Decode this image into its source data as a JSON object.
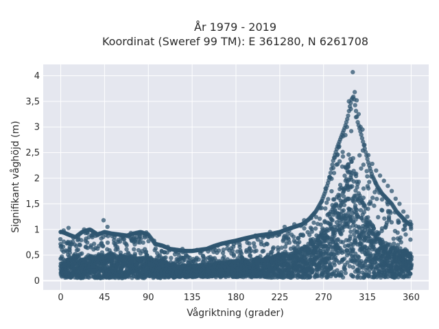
{
  "chart_data": {
    "type": "scatter",
    "title_line1": "År 1979 - 2019",
    "title_line2": "Koordinat (Sweref 99 TM): E 361280, N 6261708",
    "xlabel": "Vågriktning (grader)",
    "ylabel": "Signifikant våghöjd (m)",
    "xlim": [
      -18,
      378
    ],
    "ylim": [
      -0.18,
      4.22
    ],
    "x_ticks": [
      0,
      45,
      90,
      135,
      180,
      225,
      270,
      315,
      360
    ],
    "x_tick_labels": [
      "0",
      "45",
      "90",
      "135",
      "180",
      "225",
      "270",
      "315",
      "360"
    ],
    "y_ticks": [
      0,
      0.5,
      1,
      1.5,
      2,
      2.5,
      3,
      3.5,
      4
    ],
    "y_tick_labels": [
      "0",
      "0,5",
      "1",
      "1,5",
      "2",
      "2,5",
      "3",
      "3,5",
      "4"
    ],
    "grid": true,
    "marker_color": "#2f5670",
    "background_color": "#e5e7ef",
    "series": [
      {
        "x": [
          2,
          8,
          15,
          22,
          30,
          38,
          45,
          52,
          60,
          68,
          75,
          82,
          90,
          97,
          105,
          112,
          120,
          128,
          135,
          142,
          150,
          158,
          165,
          172,
          180,
          188,
          195,
          202,
          210,
          218,
          225,
          232,
          240,
          248,
          255,
          262,
          268,
          272,
          276,
          280,
          284,
          288,
          292,
          295,
          297,
          299,
          301,
          303,
          305,
          308,
          312,
          316,
          320,
          325,
          330,
          335,
          340,
          345,
          350,
          355,
          358
        ],
        "y": [
          0.25,
          0.3,
          0.35,
          0.3,
          0.32,
          0.33,
          0.34,
          0.35,
          0.33,
          0.32,
          0.3,
          0.3,
          0.31,
          0.28,
          0.26,
          0.24,
          0.22,
          0.22,
          0.22,
          0.22,
          0.23,
          0.24,
          0.25,
          0.26,
          0.27,
          0.28,
          0.3,
          0.31,
          0.32,
          0.33,
          0.35,
          0.36,
          0.38,
          0.42,
          0.48,
          0.55,
          0.62,
          0.7,
          0.8,
          0.95,
          1.1,
          1.25,
          1.4,
          1.5,
          1.55,
          1.5,
          1.45,
          1.35,
          1.25,
          1.1,
          0.95,
          0.82,
          0.72,
          0.62,
          0.55,
          0.5,
          0.45,
          0.42,
          0.4,
          0.38,
          0.35
        ]
      },
      {
        "x": [
          2,
          8,
          15,
          22,
          30,
          38,
          45,
          52,
          60,
          68,
          75,
          82,
          90,
          97,
          105,
          112,
          120,
          128,
          135,
          142,
          150,
          158,
          165,
          172,
          180,
          188,
          195,
          202,
          210,
          218,
          225,
          232,
          240,
          248,
          255,
          262,
          268,
          272,
          276,
          280,
          284,
          288,
          292,
          295,
          297,
          299,
          301,
          303,
          305,
          308,
          312,
          316,
          320,
          325,
          330,
          335,
          340,
          345,
          350,
          355,
          358
        ],
        "y": [
          0.95,
          0.9,
          0.85,
          0.95,
          1.0,
          0.9,
          0.95,
          0.92,
          0.9,
          0.88,
          0.92,
          0.95,
          0.9,
          0.72,
          0.68,
          0.62,
          0.6,
          0.58,
          0.58,
          0.6,
          0.62,
          0.68,
          0.72,
          0.75,
          0.78,
          0.82,
          0.85,
          0.88,
          0.9,
          0.92,
          0.95,
          1.0,
          1.05,
          1.1,
          1.2,
          1.35,
          1.55,
          1.75,
          2.0,
          2.35,
          2.6,
          2.8,
          3.0,
          3.2,
          3.4,
          3.55,
          3.6,
          3.35,
          3.1,
          2.9,
          2.6,
          2.3,
          2.05,
          1.85,
          1.7,
          1.6,
          1.5,
          1.35,
          1.25,
          1.15,
          1.1
        ]
      },
      {
        "x": [
          0,
          5,
          12,
          20,
          28,
          35,
          42,
          48,
          55,
          62,
          70,
          78,
          85,
          92,
          100,
          108,
          115,
          122,
          130,
          138,
          145,
          152,
          160,
          168,
          175,
          182,
          190,
          198,
          205,
          212,
          220,
          228,
          235,
          242,
          250,
          258,
          265,
          270,
          274,
          278,
          282,
          286,
          290,
          293,
          296,
          298,
          300,
          302,
          304,
          306,
          310,
          314,
          318,
          322,
          328,
          332,
          338,
          342,
          348,
          352,
          357
        ],
        "y": [
          0.05,
          0.06,
          0.05,
          0.05,
          0.06,
          0.05,
          0.05,
          0.06,
          0.05,
          0.05,
          0.06,
          0.05,
          0.05,
          0.06,
          0.05,
          0.06,
          0.06,
          0.07,
          0.07,
          0.07,
          0.07,
          0.07,
          0.07,
          0.07,
          0.07,
          0.07,
          0.07,
          0.07,
          0.07,
          0.06,
          0.06,
          0.06,
          0.06,
          0.06,
          0.06,
          0.06,
          0.06,
          0.06,
          0.06,
          0.06,
          0.06,
          0.06,
          0.06,
          0.06,
          0.06,
          0.06,
          0.06,
          0.06,
          0.06,
          0.06,
          0.06,
          0.06,
          0.06,
          0.06,
          0.06,
          0.06,
          0.06,
          0.06,
          0.06,
          0.06,
          0.06
        ]
      },
      {
        "x": [
          0,
          3,
          8,
          10,
          18,
          24,
          26,
          32,
          40,
          44,
          48,
          56,
          64,
          72,
          80,
          86,
          88,
          96,
          110,
          125,
          140,
          155,
          170,
          185,
          200,
          215,
          230,
          240,
          250,
          260,
          268,
          272,
          276,
          280,
          284,
          286,
          290,
          294,
          296,
          298,
          300,
          302,
          304,
          306,
          308,
          310,
          312,
          316,
          320,
          324,
          328,
          332,
          336,
          340,
          344,
          348,
          352,
          356,
          359
        ],
        "y": [
          0.95,
          0.98,
          1.03,
          0.75,
          0.85,
          1.0,
          0.82,
          0.88,
          0.92,
          1.18,
          1.05,
          0.9,
          0.86,
          0.93,
          0.92,
          0.88,
          0.94,
          0.78,
          0.66,
          0.62,
          0.6,
          0.64,
          0.72,
          0.8,
          0.88,
          0.95,
          1.05,
          1.1,
          1.18,
          1.3,
          1.42,
          1.8,
          2.02,
          2.2,
          2.45,
          2.62,
          2.82,
          3.0,
          3.5,
          3.35,
          4.07,
          3.68,
          3.52,
          3.25,
          3.0,
          2.95,
          2.65,
          2.45,
          2.28,
          2.15,
          2.05,
          1.95,
          1.85,
          1.75,
          1.6,
          1.5,
          1.35,
          1.25,
          1.15
        ]
      }
    ]
  }
}
